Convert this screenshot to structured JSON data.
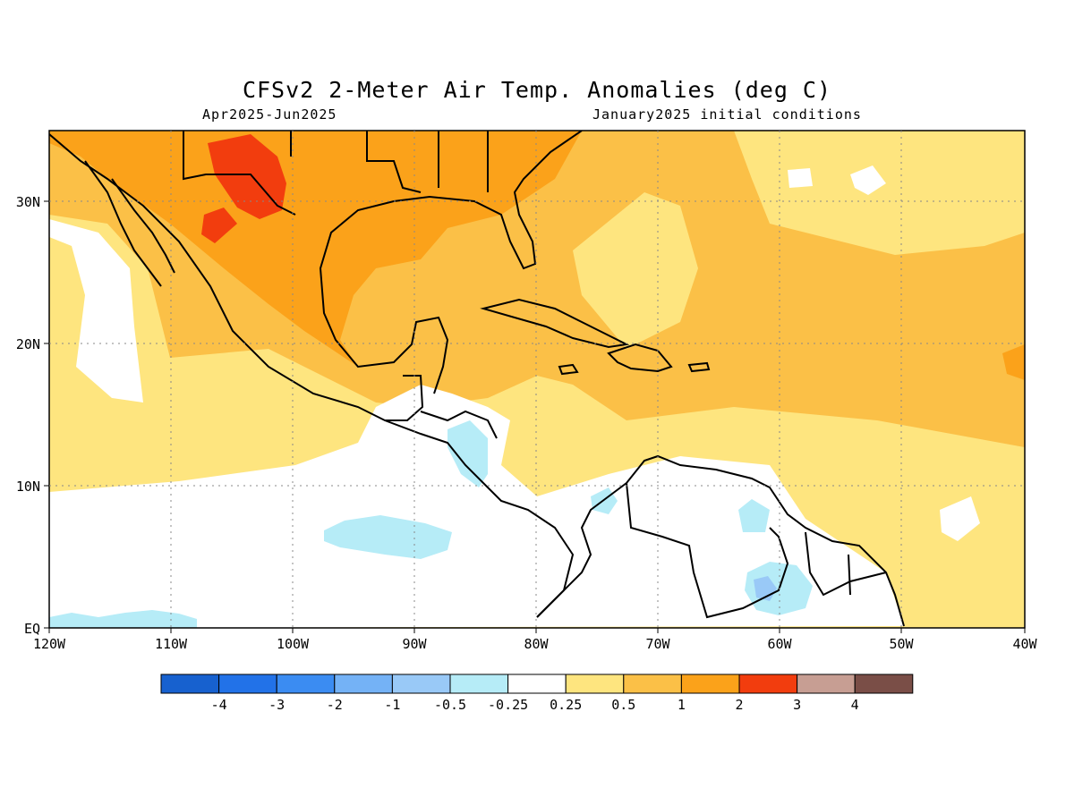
{
  "header": {
    "title": "CFSv2 2-Meter Air Temp. Anomalies (deg C)",
    "period": "Apr2025-Jun2025",
    "initial_conditions": "January2025 initial conditions"
  },
  "map": {
    "region": {
      "lon_range": [
        -120,
        -40
      ],
      "lat_range": [
        0,
        35
      ]
    },
    "lat_labels": [
      "EQ",
      "10N",
      "20N",
      "30N"
    ],
    "lon_labels": [
      "120W",
      "110W",
      "100W",
      "90W",
      "80W",
      "70W",
      "60W",
      "50W",
      "40W"
    ],
    "grid": "dotted"
  },
  "legend": {
    "colors": [
      "#1761cf",
      "#2272e8",
      "#3b8cf2",
      "#74b2f6",
      "#99c9f7",
      "#b6ecf7",
      "#ffffff",
      "#fee57f",
      "#fbc047",
      "#fba21a",
      "#f23d0e",
      "#c79e93",
      "#7a4e47"
    ],
    "labels": [
      "-4",
      "-3",
      "-2",
      "-1",
      "-0.5",
      "-0.25",
      "0.25",
      "0.5",
      "1",
      "2",
      "3",
      "4"
    ]
  }
}
